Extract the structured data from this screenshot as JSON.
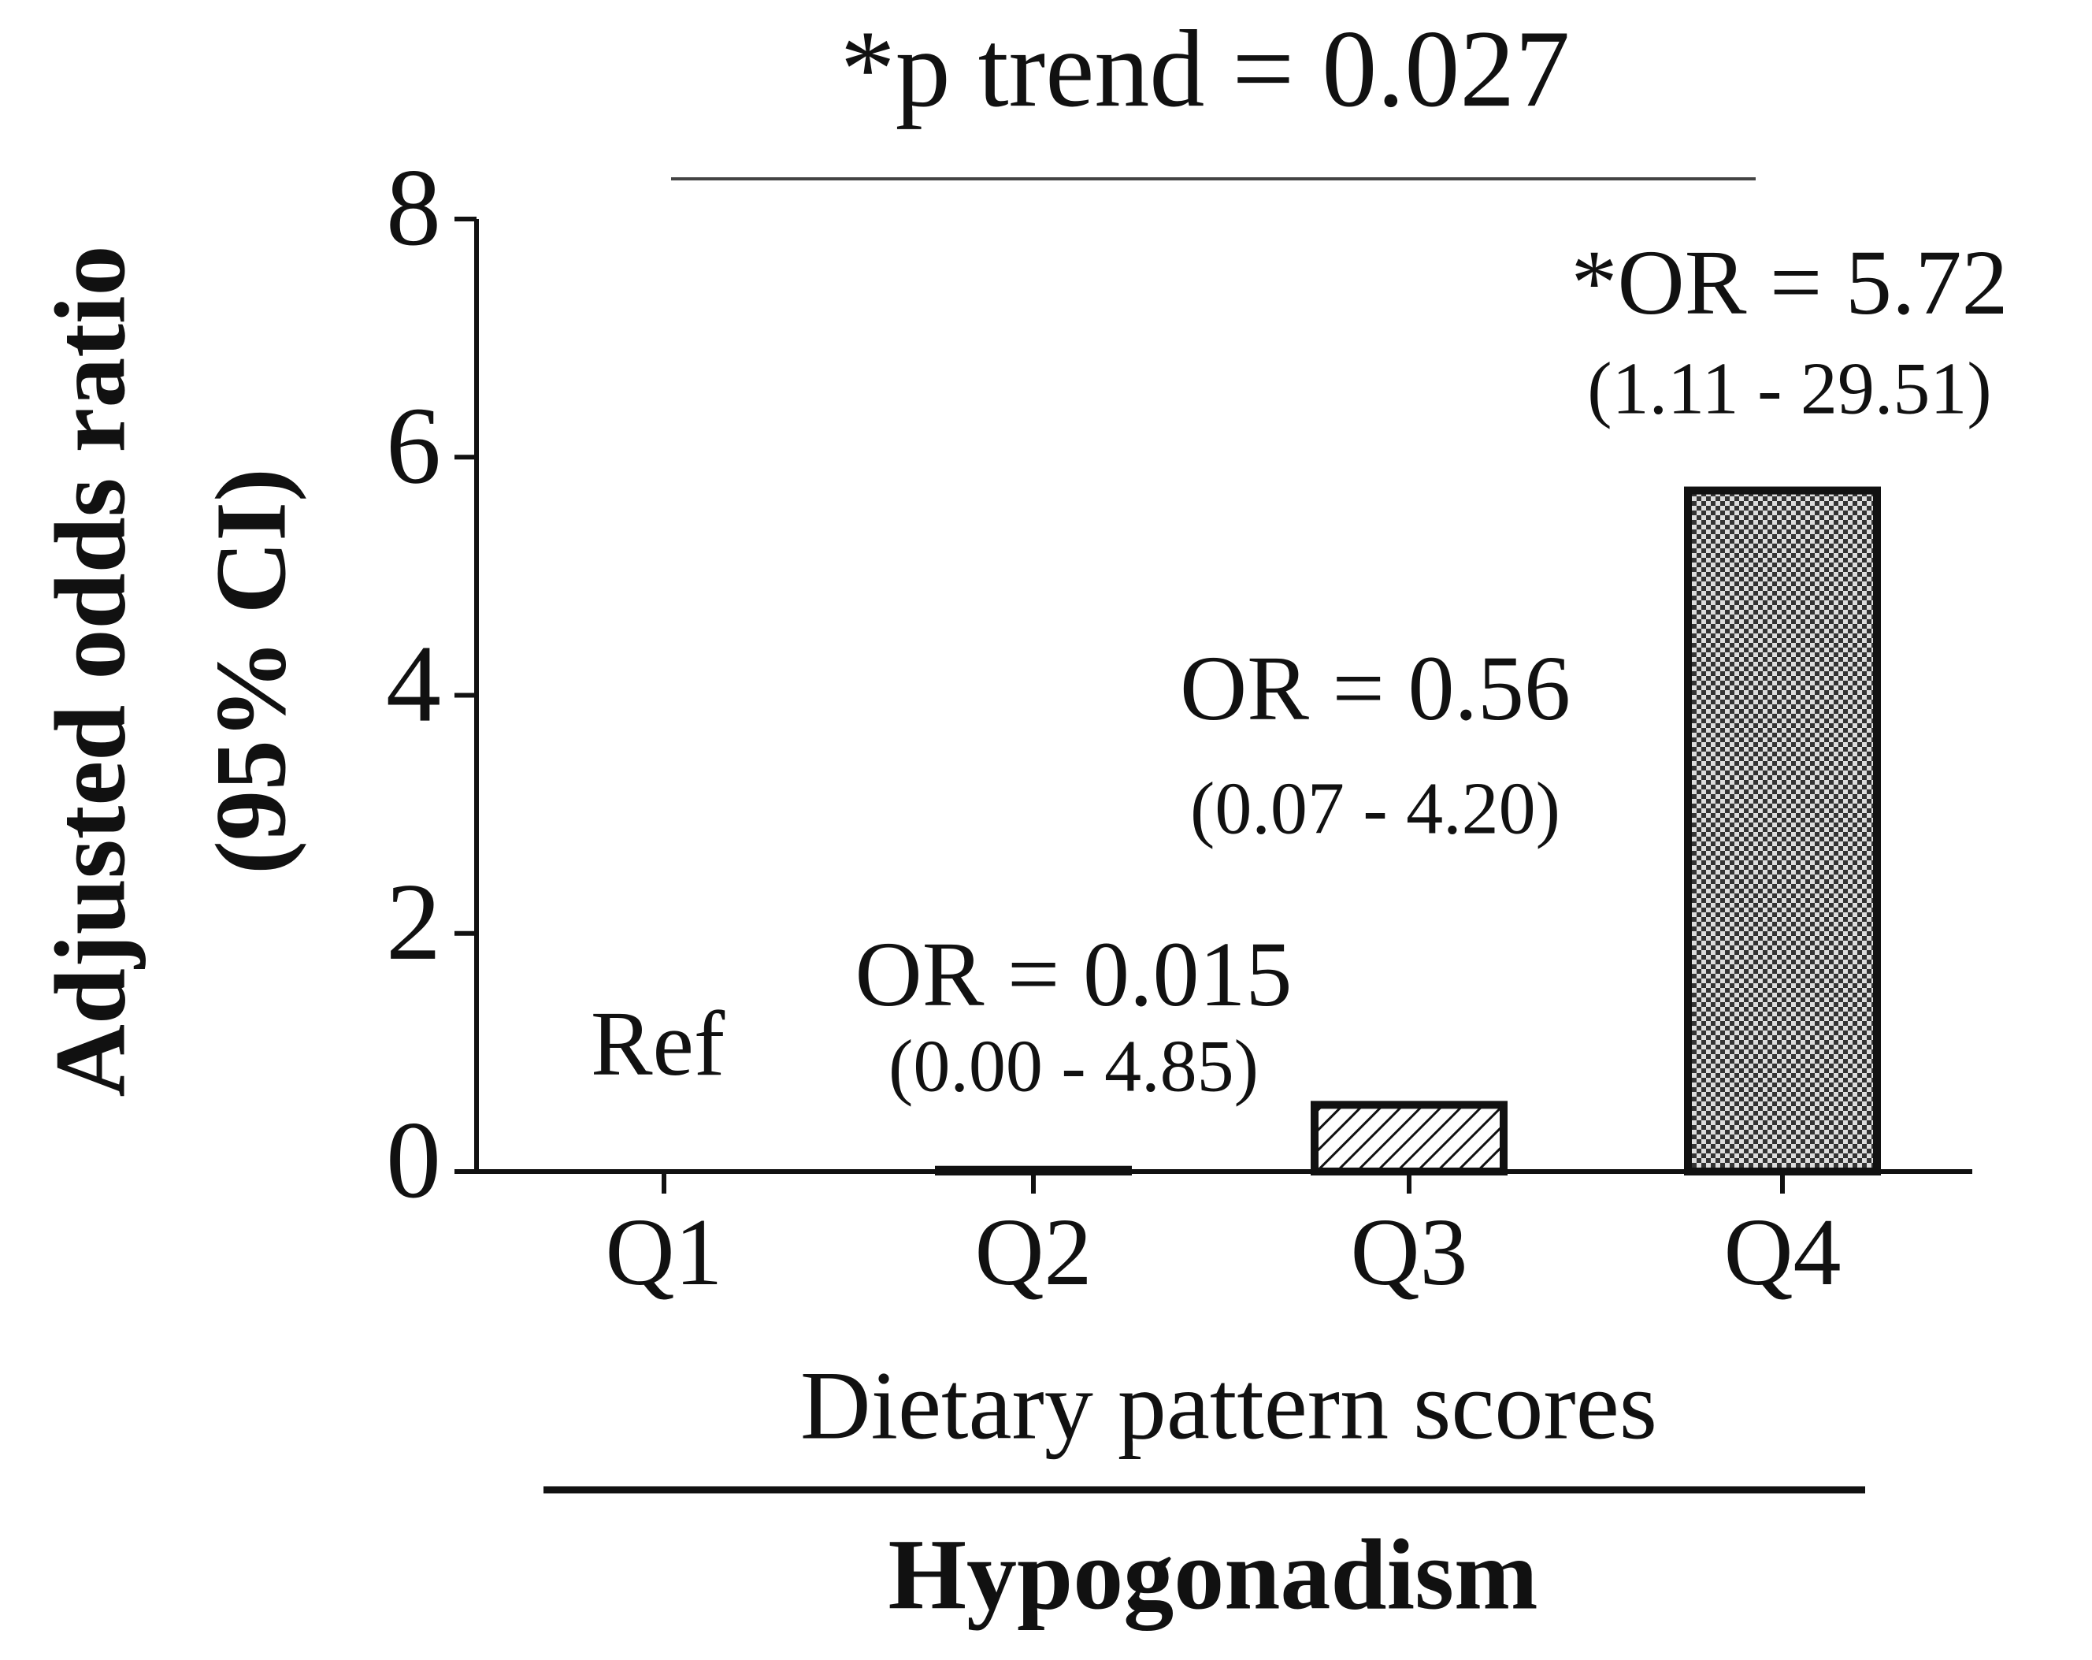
{
  "chart_data": {
    "type": "bar",
    "title": "*p trend = 0.027",
    "ylabel": [
      "Adjusted odds ratio",
      "(95% CI)"
    ],
    "xlabel": "Dietary pattern scores",
    "group_label": "Hypogonadism",
    "categories": [
      "Q1",
      "Q2",
      "Q3",
      "Q4"
    ],
    "values": [
      null,
      0.015,
      0.56,
      5.72
    ],
    "value_labels": [
      "Ref",
      "OR = 0.015",
      "OR = 0.56",
      "*OR = 5.72"
    ],
    "ci_labels": [
      null,
      "(0.00 - 4.85)",
      "(0.07 - 4.20)",
      "(1.11 - 29.51)"
    ],
    "patterns": [
      "none",
      "none",
      "hatch",
      "dots"
    ],
    "color": "#111111",
    "ylim": [
      0,
      8
    ],
    "yticks": [
      0,
      2,
      4,
      6,
      8
    ],
    "grid": false
  }
}
